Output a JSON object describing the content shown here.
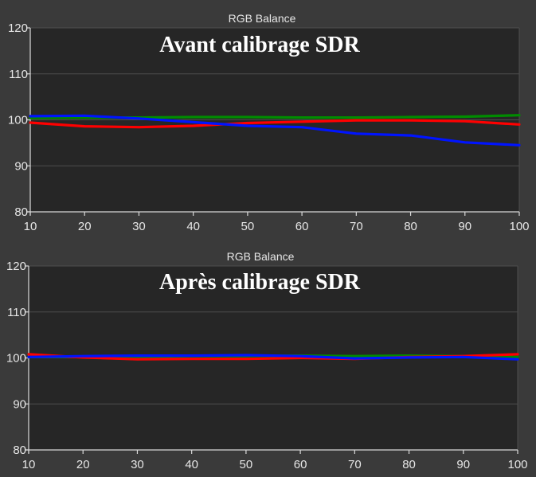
{
  "chart_data": [
    {
      "type": "line",
      "title": "RGB Balance",
      "overlay_title": "Avant calibrage SDR",
      "xlabel": "",
      "ylabel": "",
      "x": [
        10,
        20,
        30,
        40,
        50,
        60,
        70,
        80,
        90,
        100
      ],
      "xticks": [
        "10",
        "20",
        "30",
        "40",
        "50",
        "60",
        "70",
        "80",
        "90",
        "100"
      ],
      "yticks": [
        "80",
        "90",
        "100",
        "110",
        "120"
      ],
      "xlim": [
        10,
        100
      ],
      "ylim": [
        80,
        120
      ],
      "grid": true,
      "legend": "none",
      "series": [
        {
          "color": "#008c00",
          "values": [
            100.4,
            100.5,
            100.5,
            100.6,
            100.6,
            100.5,
            100.5,
            100.6,
            100.7,
            101.0
          ]
        },
        {
          "color": "#ff0000",
          "values": [
            99.4,
            98.6,
            98.4,
            98.7,
            99.3,
            99.6,
            99.9,
            99.9,
            99.7,
            99.0
          ]
        },
        {
          "color": "#0014ff",
          "values": [
            100.8,
            100.9,
            100.3,
            99.5,
            98.7,
            98.4,
            97.0,
            96.6,
            95.1,
            94.5
          ]
        }
      ]
    },
    {
      "type": "line",
      "title": "RGB Balance",
      "overlay_title": "Après calibrage SDR",
      "xlabel": "",
      "ylabel": "",
      "x": [
        10,
        20,
        30,
        40,
        50,
        60,
        70,
        80,
        90,
        100
      ],
      "xticks": [
        "10",
        "20",
        "30",
        "40",
        "50",
        "60",
        "70",
        "80",
        "90",
        "100"
      ],
      "yticks": [
        "80",
        "90",
        "100",
        "110",
        "120"
      ],
      "xlim": [
        10,
        100
      ],
      "ylim": [
        80,
        120
      ],
      "grid": true,
      "legend": "none",
      "series": [
        {
          "color": "#008c00",
          "values": [
            100.2,
            100.3,
            100.3,
            100.4,
            100.4,
            100.5,
            100.4,
            100.5,
            100.4,
            100.2
          ]
        },
        {
          "color": "#ff0000",
          "values": [
            100.8,
            100.1,
            99.7,
            99.8,
            99.8,
            100.0,
            99.8,
            100.2,
            100.4,
            100.8
          ]
        },
        {
          "color": "#0014ff",
          "values": [
            100.2,
            100.4,
            100.5,
            100.5,
            100.6,
            100.4,
            99.9,
            100.1,
            100.2,
            99.7
          ]
        }
      ]
    }
  ]
}
